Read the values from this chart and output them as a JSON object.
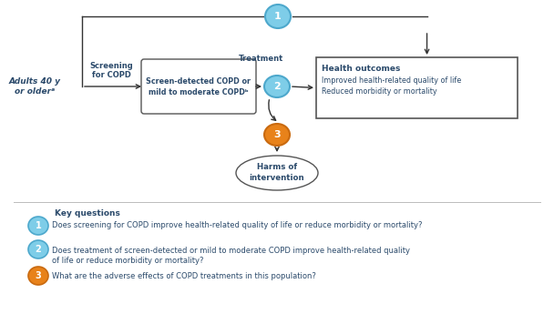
{
  "bg_color": "#ffffff",
  "diagram_text_color": "#2b4a6b",
  "box_edge_color": "#555555",
  "arrow_color": "#333333",
  "blue_circle_fill": "#7ecde8",
  "blue_circle_edge": "#4da8cc",
  "orange_circle_fill": "#e8821a",
  "orange_circle_edge": "#c96a10",
  "adults_label": "Adults 40 y\nor olderᵃ",
  "screening_label": "Screening\nfor COPD",
  "treatment_label": "Treatment",
  "screen_line1": "Screen-detected COPD or",
  "screen_line2": "mild to moderate COPDᵇ",
  "health_title": "Health outcomes",
  "health_line1": "Improved health-related quality of life",
  "health_line2": "Reduced morbidity or mortality",
  "harms_line1": "Harms of",
  "harms_line2": "intervention",
  "kq_header": "Key questions",
  "kq1_text": "Does screening for COPD improve health-related quality of life or reduce morbidity or mortality?",
  "kq2_line1": "Does treatment of screen-detected or mild to moderate COPD improve health-related quality",
  "kq2_line2": "of life or reduce morbidity or mortality?",
  "kq3_text": "What are the adverse effects of COPD treatments in this population?"
}
